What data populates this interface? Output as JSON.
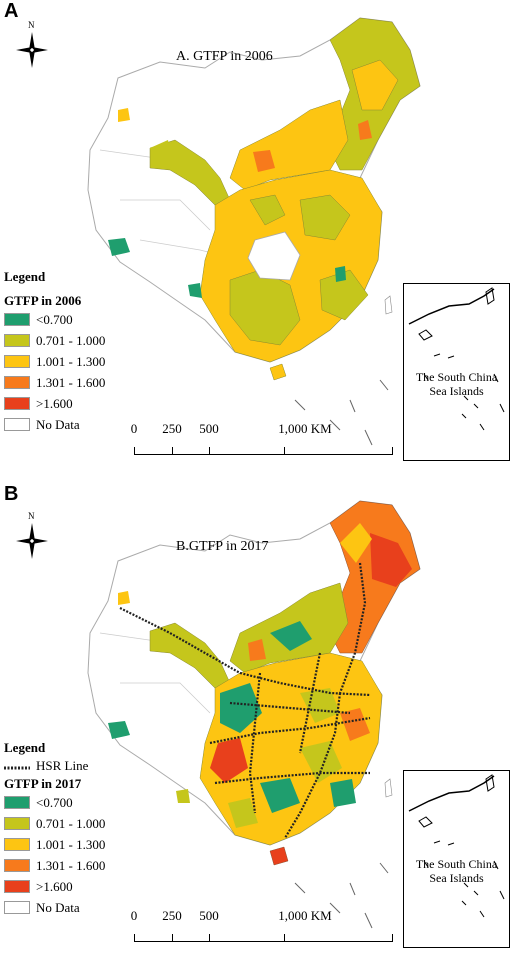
{
  "panels": [
    {
      "letter": "A",
      "title": "A. GTFP in 2006",
      "north": "N",
      "legend": {
        "heading": "Legend",
        "subtitle": "GTFP in 2006",
        "classes": [
          {
            "label": "<0.700",
            "color": "#1f9e6e"
          },
          {
            "label": "0.701 - 1.000",
            "color": "#c5c61c"
          },
          {
            "label": "1.001 - 1.300",
            "color": "#fdc512"
          },
          {
            "label": "1.301 - 1.600",
            "color": "#f77a1c"
          },
          {
            "label": ">1.600",
            "color": "#e8401c"
          },
          {
            "label": "No Data",
            "color": "#ffffff"
          }
        ]
      },
      "scale": [
        "0",
        "250",
        "500",
        "1,000 KM"
      ],
      "inset_label_1": "The South China",
      "inset_label_2": "Sea Islands"
    },
    {
      "letter": "B",
      "title": "B.GTFP in 2017",
      "north": "N",
      "legend": {
        "heading": "Legend",
        "hsr": "HSR Line",
        "subtitle": "GTFP in 2017",
        "classes": [
          {
            "label": "<0.700",
            "color": "#1f9e6e"
          },
          {
            "label": "0.701 - 1.000",
            "color": "#c5c61c"
          },
          {
            "label": "1.001 - 1.300",
            "color": "#fdc512"
          },
          {
            "label": "1.301 - 1.600",
            "color": "#f77a1c"
          },
          {
            "label": ">1.600",
            "color": "#e8401c"
          },
          {
            "label": "No Data",
            "color": "#ffffff"
          }
        ]
      },
      "scale": [
        "0",
        "250",
        "500",
        "1,000 KM"
      ],
      "inset_label_1": "The South China",
      "inset_label_2": "Sea Islands"
    }
  ]
}
